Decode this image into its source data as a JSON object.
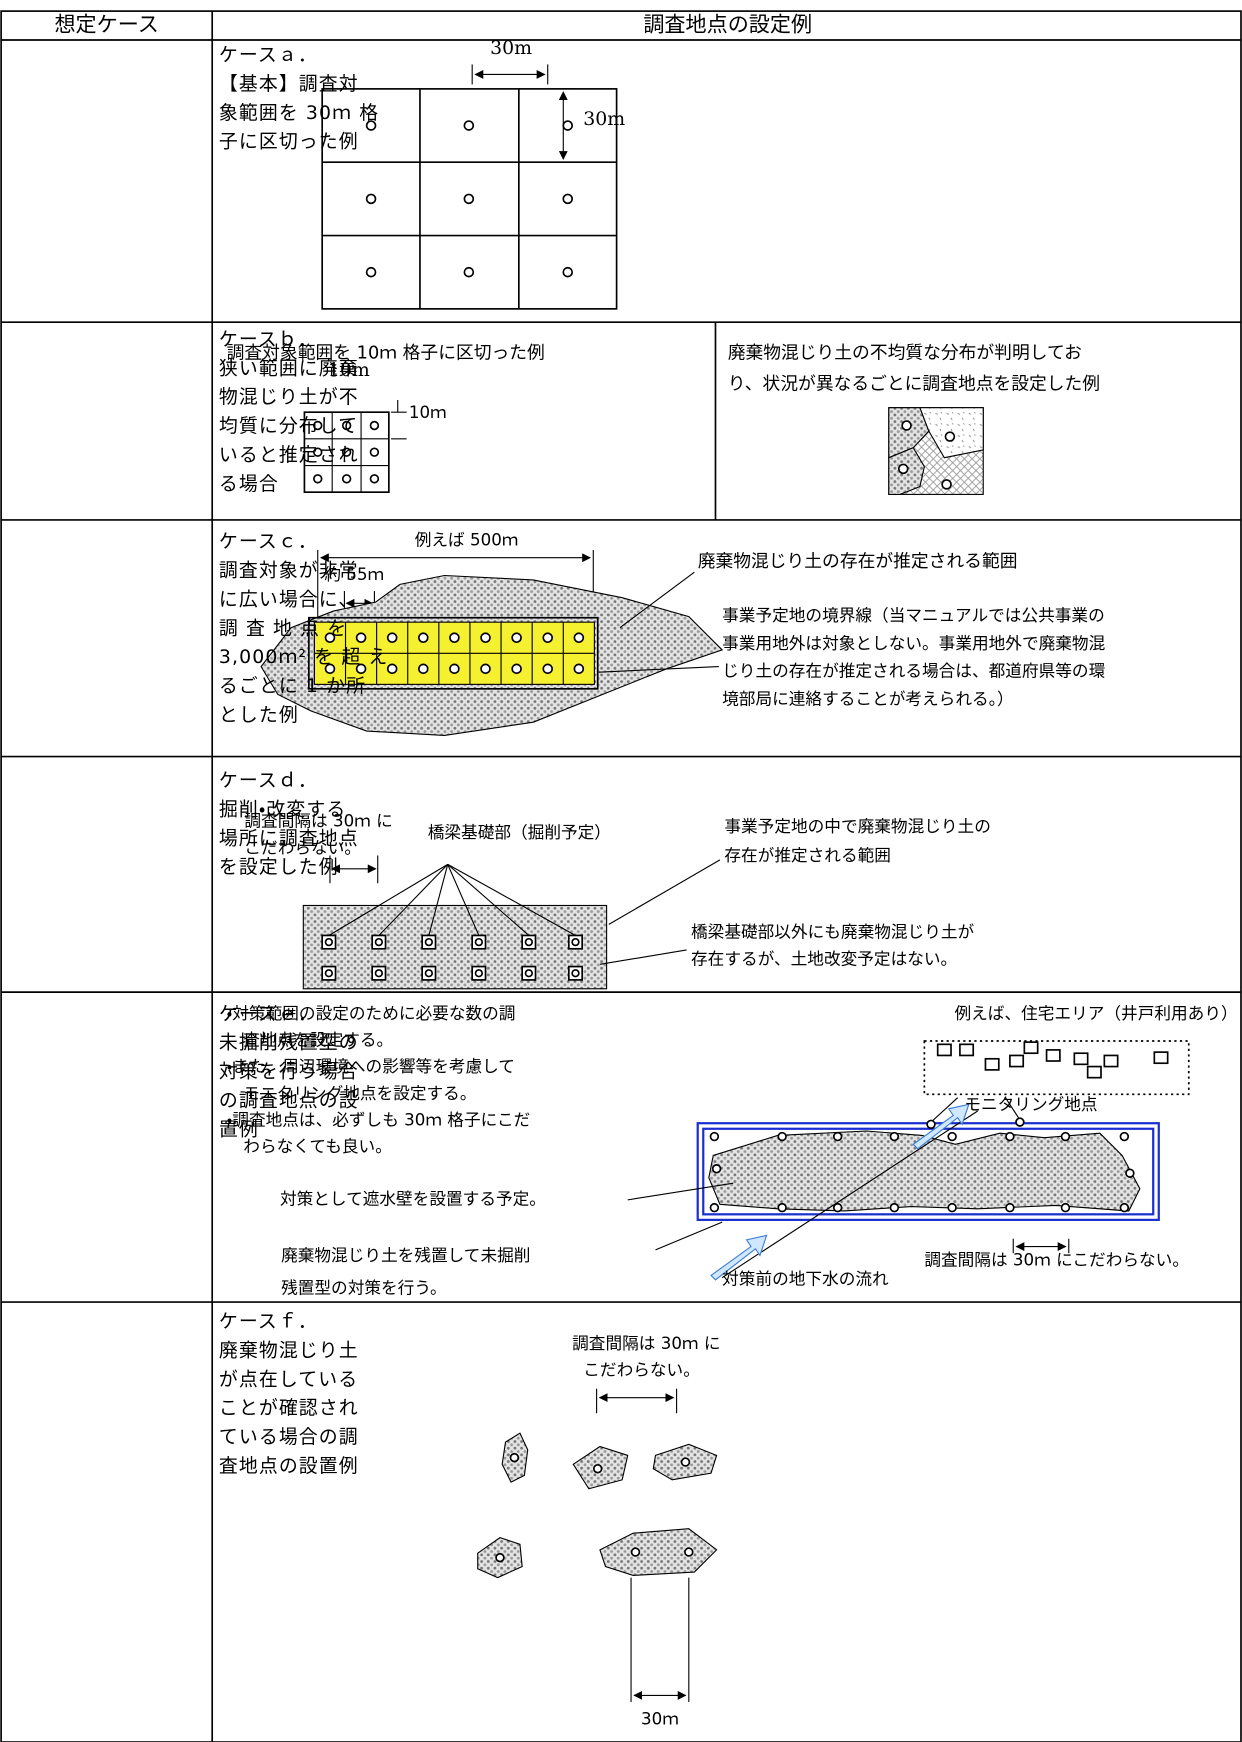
{
  "table": {
    "headers": [
      "想定ケース",
      "調査地点の設定例"
    ],
    "rows": [
      {
        "case": [
          "ケースａ．",
          "【基本】調査対",
          "象範囲を 30ｍ 格",
          "子に区切った例"
        ],
        "figure": {
          "width_label": "30m",
          "height_label": "30m"
        }
      },
      {
        "case": [
          "ケースｂ．",
          "狭い範囲に廃棄",
          "物混じり土が不",
          "均質に分布して",
          "いると推定され",
          "る場合"
        ],
        "figure": {
          "left_caption": "調査対象範囲を 10ｍ 格子に区切った例",
          "grid_top_label": "10m",
          "grid_side_label": "10ｍ",
          "right_caption": [
            "廃棄物混じり土の不均質な分布が判明してお",
            "り、状況が異なるごとに調査地点を設定した例"
          ]
        }
      },
      {
        "case": [
          "ケースｃ．",
          "調査対象が非常",
          "に広い場合に、",
          "調 査 地 点 を",
          "3,000ｍ² を 超 え",
          "るごとに 1 か所",
          "とした例"
        ],
        "figure": {
          "total_label": "例えば 500ｍ",
          "interval_label": "約 55ｍ",
          "area_label": "廃棄物混じり土の存在が推定される範囲",
          "boundary_note": [
            "事業予定地の境界線（当マニュアルでは公共事業の",
            "事業用地外は対象としない。事業用地外で廃棄物混",
            "じり土の存在が推定される場合は、都道府県等の環",
            "境部局に連絡することが考えられる。）"
          ]
        }
      },
      {
        "case": [
          "ケースｄ．",
          "掘削・改変する",
          "場所に調査地点",
          "を設定した例"
        ],
        "figure": {
          "interval_note": [
            "調査間隔は 30ｍ に",
            "こだわらない。"
          ],
          "pier_label": "橋梁基礎部（掘削予定）",
          "area_label": [
            "事業予定地の中で廃棄物混じり土の",
            "存在が推定される範囲"
          ],
          "other_label": [
            "橋梁基礎部以外にも廃棄物混じり土が",
            "存在するが、土地改変予定はない。"
          ]
        }
      },
      {
        "case": [
          "ケースｅ．",
          "未掘削残置型の",
          "対策を行う場合",
          "の調査地点の設",
          "置例"
        ],
        "figure": {
          "bullets": [
            "・対策範囲の設定のために必要な数の調",
            "　査地点を設定する。",
            "・また、周辺環境への影響等を考慮して",
            "　モニタリング地点を設定する。",
            "・調査地点は、必ずしも 30ｍ 格子にこだ",
            "　わらなくても良い。"
          ],
          "residential_label": "例えば、住宅エリア（井戸利用あり）",
          "monitoring_label": "モニタリング地点",
          "wall_label": "対策として遮水壁を設置する予定。",
          "leave_label": [
            "廃棄物混じり土を残置して未掘削",
            "残置型の対策を行う。"
          ],
          "interval_label": "調査間隔は 30ｍ にこだわらない。",
          "flow_label": "対策前の地下水の流れ"
        }
      },
      {
        "case": [
          "ケースｆ．",
          "廃棄物混じり土",
          "が点在している",
          "ことが確認され",
          "ている場合の調",
          "査地点の設置例"
        ],
        "figure": {
          "interval_note": [
            "調査間隔は 30ｍ に",
            "こだわらない。"
          ],
          "spacing_label": "30ｍ"
        }
      }
    ]
  }
}
